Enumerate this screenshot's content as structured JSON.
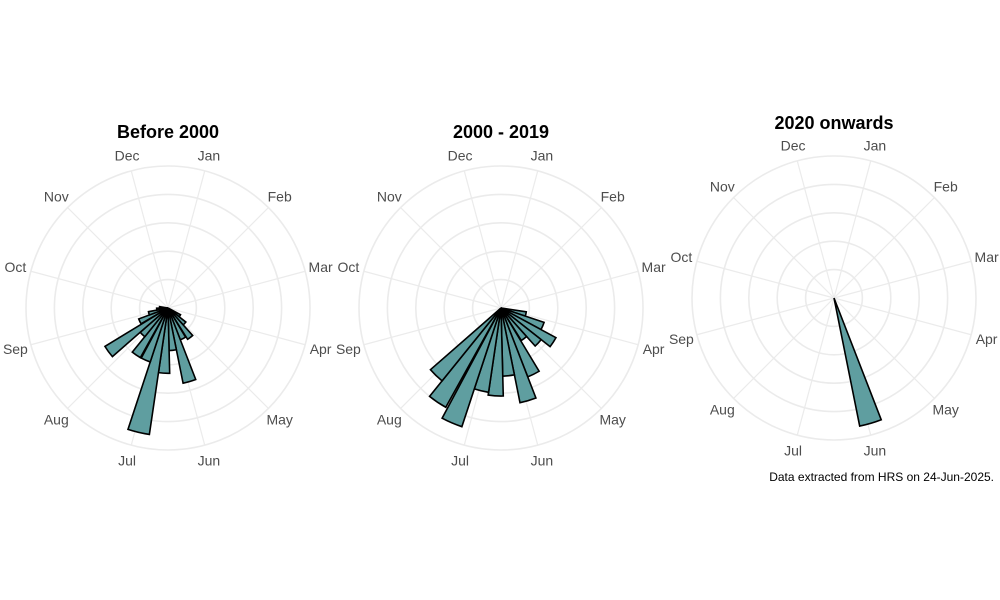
{
  "caption": "Data extracted from HRS on 24-Jun-2025.",
  "colors": {
    "bar_fill": "#5f9ea0",
    "bar_stroke": "#000000",
    "grid": "#ebebeb",
    "label": "#4d4d4d"
  },
  "months": [
    "Jan",
    "Feb",
    "Mar",
    "Apr",
    "May",
    "Jun",
    "Jul",
    "Aug",
    "Sep",
    "Oct",
    "Nov",
    "Dec"
  ],
  "chart_data": [
    {
      "type": "bar",
      "subtype": "polar-rose",
      "title": "Before 2000",
      "angular_axis": [
        "Jan",
        "Feb",
        "Mar",
        "Apr",
        "May",
        "Jun",
        "Jul",
        "Aug",
        "Sep",
        "Oct",
        "Nov",
        "Dec"
      ],
      "grid": true,
      "series": [
        {
          "values": [
            {
              "date": "May 1",
              "value": 0.1
            },
            {
              "date": "May 11",
              "value": 0.16
            },
            {
              "date": "May 21",
              "value": 0.26
            },
            {
              "date": "Jun 1",
              "value": 0.24
            },
            {
              "date": "Jun 11",
              "value": 0.54
            },
            {
              "date": "Jun 21",
              "value": 0.3
            },
            {
              "date": "Jul 1",
              "value": 0.46
            },
            {
              "date": "Jul 11",
              "value": 0.9
            },
            {
              "date": "Jul 21",
              "value": 0.4
            },
            {
              "date": "Aug 1",
              "value": 0.4
            },
            {
              "date": "Aug 11",
              "value": 0.26
            },
            {
              "date": "Aug 21",
              "value": 0.52
            },
            {
              "date": "Sep 1",
              "value": 0.22
            },
            {
              "date": "Sep 11",
              "value": 0.14
            },
            {
              "date": "Sep 21",
              "value": 0.08
            },
            {
              "date": "Oct 1",
              "value": 0.06
            }
          ]
        }
      ]
    },
    {
      "type": "bar",
      "subtype": "polar-rose",
      "title": "2000 - 2019",
      "angular_axis": [
        "Jan",
        "Feb",
        "Mar",
        "Apr",
        "May",
        "Jun",
        "Jul",
        "Aug",
        "Sep",
        "Oct",
        "Nov",
        "Dec"
      ],
      "grid": true,
      "series": [
        {
          "values": [
            {
              "date": "Apr 11",
              "value": 0.18
            },
            {
              "date": "Apr 21",
              "value": 0.32
            },
            {
              "date": "May 1",
              "value": 0.44
            },
            {
              "date": "May 11",
              "value": 0.36
            },
            {
              "date": "May 21",
              "value": 0.27
            },
            {
              "date": "Jun 1",
              "value": 0.52
            },
            {
              "date": "Jun 11",
              "value": 0.68
            },
            {
              "date": "Jun 21",
              "value": 0.48
            },
            {
              "date": "Jul 1",
              "value": 0.62
            },
            {
              "date": "Jul 11",
              "value": 0.6
            },
            {
              "date": "Jul 21",
              "value": 0.88
            },
            {
              "date": "Aug 1",
              "value": 0.8
            },
            {
              "date": "Aug 11",
              "value": 0.66
            }
          ]
        }
      ]
    },
    {
      "type": "bar",
      "subtype": "polar-rose",
      "title": "2020 onwards",
      "angular_axis": [
        "Jan",
        "Feb",
        "Mar",
        "Apr",
        "May",
        "Jun",
        "Jul",
        "Aug",
        "Sep",
        "Oct",
        "Nov",
        "Dec"
      ],
      "grid": true,
      "series": [
        {
          "values": [
            {
              "date": "Jun 11",
              "value": 0.92
            }
          ]
        }
      ]
    }
  ]
}
